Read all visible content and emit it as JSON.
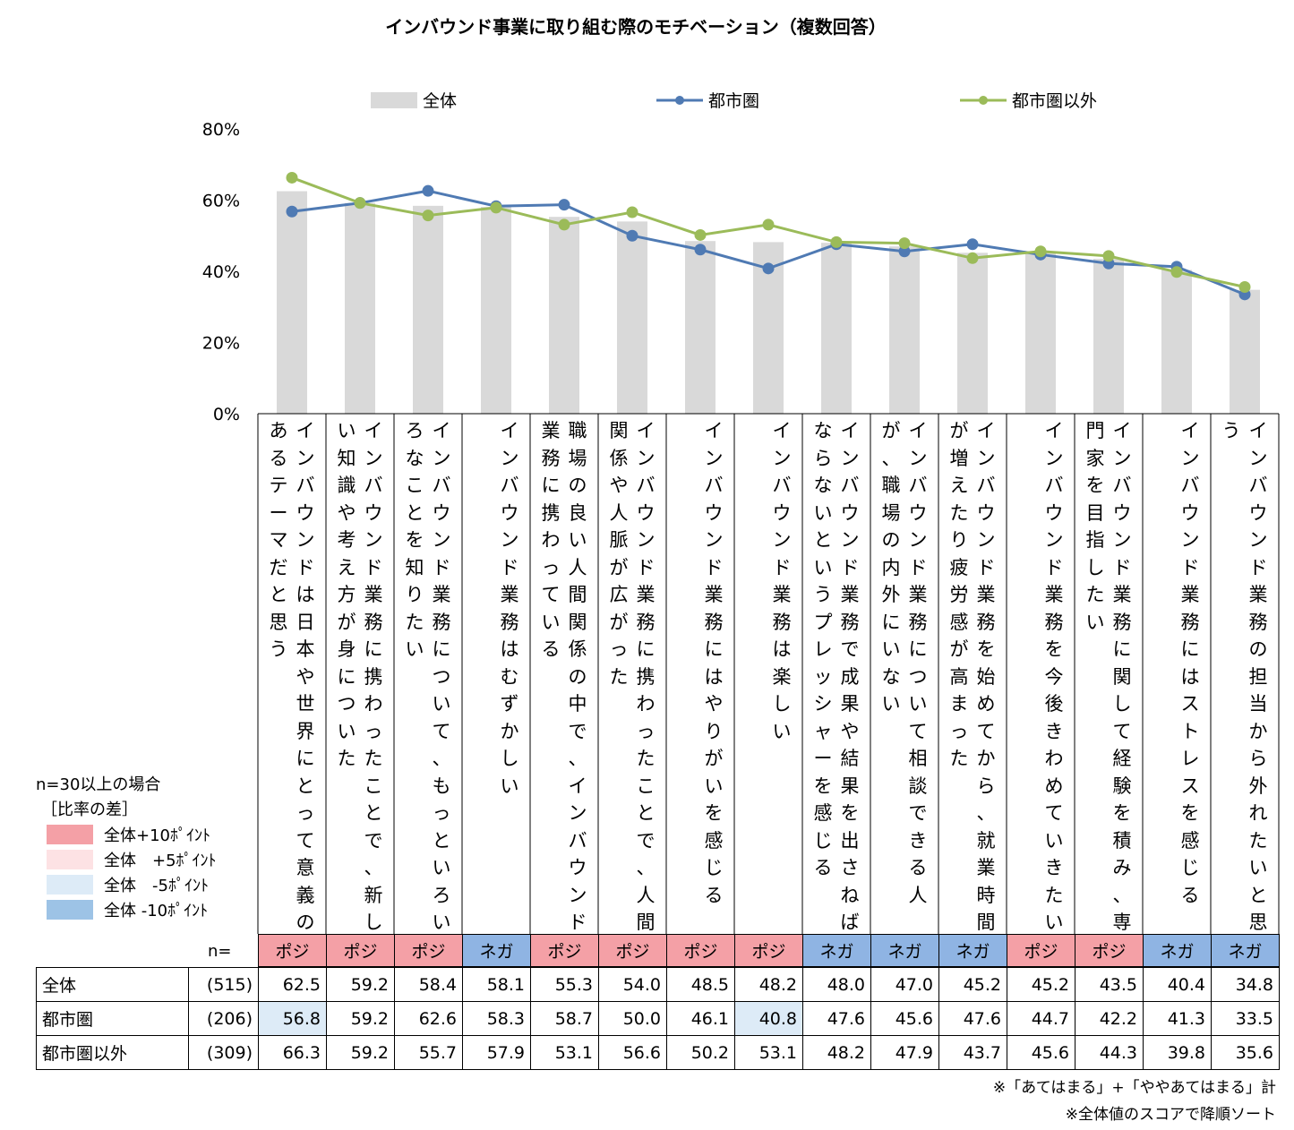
{
  "title": "インバウンド事業に取り組む際のモチベーション（複数回答）",
  "legend": {
    "all": "全体",
    "urban": "都市圏",
    "nonurban": "都市圏以外"
  },
  "colors": {
    "bar": "#d9d9d9",
    "urban": "#4f7ab3",
    "nonurban": "#9bbb59",
    "posi": "#f4a0a6",
    "nega": "#8fb4e3",
    "highlight_minus5": "#ddebf7"
  },
  "chart_data": {
    "type": "bar+line",
    "y_ticks": [
      "80%",
      "60%",
      "40%",
      "20%",
      "0%"
    ],
    "ylim": [
      0,
      80
    ],
    "categories": [
      [
        "インバウンドは日本や世界にとって意義の",
        "あるテーマだと思う"
      ],
      [
        "インバウンド業務に携わったことで、新し",
        "い知識や考え方が身についた"
      ],
      [
        "インバウンド業務について、もっといろい",
        "ろなことを知りたい"
      ],
      [
        "インバウンド業務はむずかしい"
      ],
      [
        "職場の良い人間関係の中で、インバウンド",
        "業務に携わっている"
      ],
      [
        "インバウンド業務に携わったことで、人間",
        "関係や人脈が広がった"
      ],
      [
        "インバウンド業務にはやりがいを感じる"
      ],
      [
        "インバウンド業務は楽しい"
      ],
      [
        "インバウンド業務で成果や結果を出さねば",
        "ならないというプレッシャーを感じる"
      ],
      [
        "インバウンド業務について相談できる人",
        "が、職場の内外にいない"
      ],
      [
        "インバウンド業務を始めてから、就業時間",
        "が増えたり疲労感が高まった"
      ],
      [
        "インバウンド業務を今後きわめていきたい"
      ],
      [
        "インバウンド業務に関して経験を積み、専",
        "門家を目指したい"
      ],
      [
        "インバウンド業務にはストレスを感じる"
      ],
      [
        "インバウンド業務の担当から外れたいと思",
        "う"
      ]
    ],
    "series": [
      {
        "name": "全体",
        "type": "bar",
        "values": [
          62.5,
          59.2,
          58.4,
          58.1,
          55.3,
          54.0,
          48.5,
          48.2,
          48.0,
          47.0,
          45.2,
          45.2,
          43.5,
          40.4,
          34.8
        ]
      },
      {
        "name": "都市圏",
        "type": "line",
        "values": [
          56.8,
          59.2,
          62.6,
          58.3,
          58.7,
          50.0,
          46.1,
          40.8,
          47.6,
          45.6,
          47.6,
          44.7,
          42.2,
          41.3,
          33.5
        ]
      },
      {
        "name": "都市圏以外",
        "type": "line",
        "values": [
          66.3,
          59.2,
          55.7,
          57.9,
          53.1,
          56.6,
          50.2,
          53.1,
          48.2,
          47.9,
          43.7,
          45.6,
          44.3,
          39.8,
          35.6
        ]
      }
    ]
  },
  "sentiment": [
    "ポジ",
    "ポジ",
    "ポジ",
    "ネガ",
    "ポジ",
    "ポジ",
    "ポジ",
    "ポジ",
    "ネガ",
    "ネガ",
    "ネガ",
    "ポジ",
    "ポジ",
    "ネガ",
    "ネガ"
  ],
  "table": {
    "n_label": "n=",
    "rows": [
      {
        "label": "全体",
        "n": "(515)",
        "values": [
          "62.5",
          "59.2",
          "58.4",
          "58.1",
          "55.3",
          "54.0",
          "48.5",
          "48.2",
          "48.0",
          "47.0",
          "45.2",
          "45.2",
          "43.5",
          "40.4",
          "34.8"
        ]
      },
      {
        "label": "都市圏",
        "n": "(206)",
        "values": [
          "56.8",
          "59.2",
          "62.6",
          "58.3",
          "58.7",
          "50.0",
          "46.1",
          "40.8",
          "47.6",
          "45.6",
          "47.6",
          "44.7",
          "42.2",
          "41.3",
          "33.5"
        ],
        "highlight": [
          0,
          7
        ]
      },
      {
        "label": "都市圏以外",
        "n": "(309)",
        "values": [
          "66.3",
          "59.2",
          "55.7",
          "57.9",
          "53.1",
          "56.6",
          "50.2",
          "53.1",
          "48.2",
          "47.9",
          "43.7",
          "45.6",
          "44.3",
          "39.8",
          "35.6"
        ]
      }
    ]
  },
  "key": {
    "title": "n=30以上の場合",
    "subtitle": "［比率の差］",
    "items": [
      "全体+10ﾎﾟｲﾝﾄ",
      "全体　+5ﾎﾟｲﾝﾄ",
      "全体　-5ﾎﾟｲﾝﾄ",
      "全体 -10ﾎﾟｲﾝﾄ"
    ],
    "colors": [
      "#f4a0a6",
      "#fde2e4",
      "#ddebf7",
      "#9dc3e6"
    ]
  },
  "notes": [
    "※「あてはまる」+「ややあてはまる」計",
    "※全体値のスコアで降順ソート"
  ]
}
